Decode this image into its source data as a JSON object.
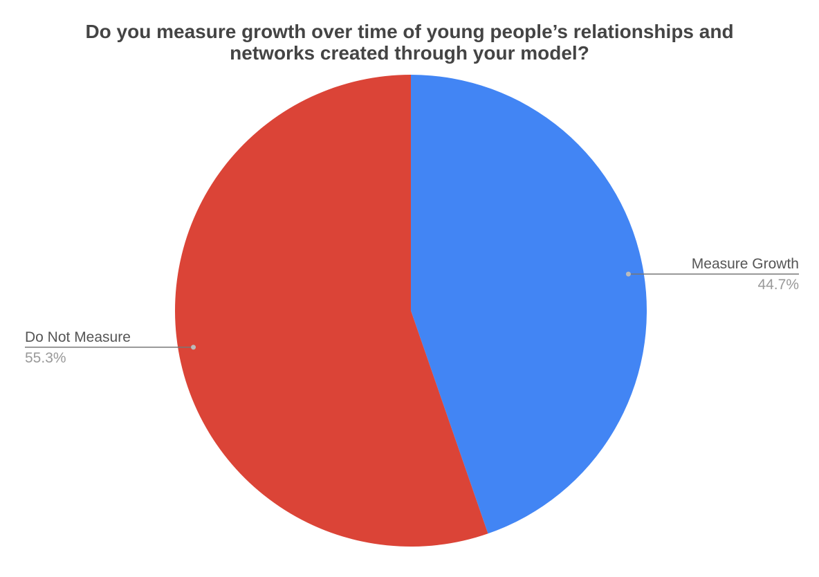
{
  "chart_data": {
    "type": "pie",
    "title_lines": [
      "Do you measure growth over time of young people’s relationships and",
      "networks created through your model?"
    ],
    "slices": [
      {
        "name": "Measure Growth",
        "value": 44.7,
        "label": "44.7%",
        "color": "#4285f4"
      },
      {
        "name": "Do Not Measure",
        "value": 55.3,
        "label": "55.3%",
        "color": "#db4437"
      }
    ],
    "start_angle": "12 o'clock",
    "direction": "clockwise",
    "legend": "none"
  }
}
